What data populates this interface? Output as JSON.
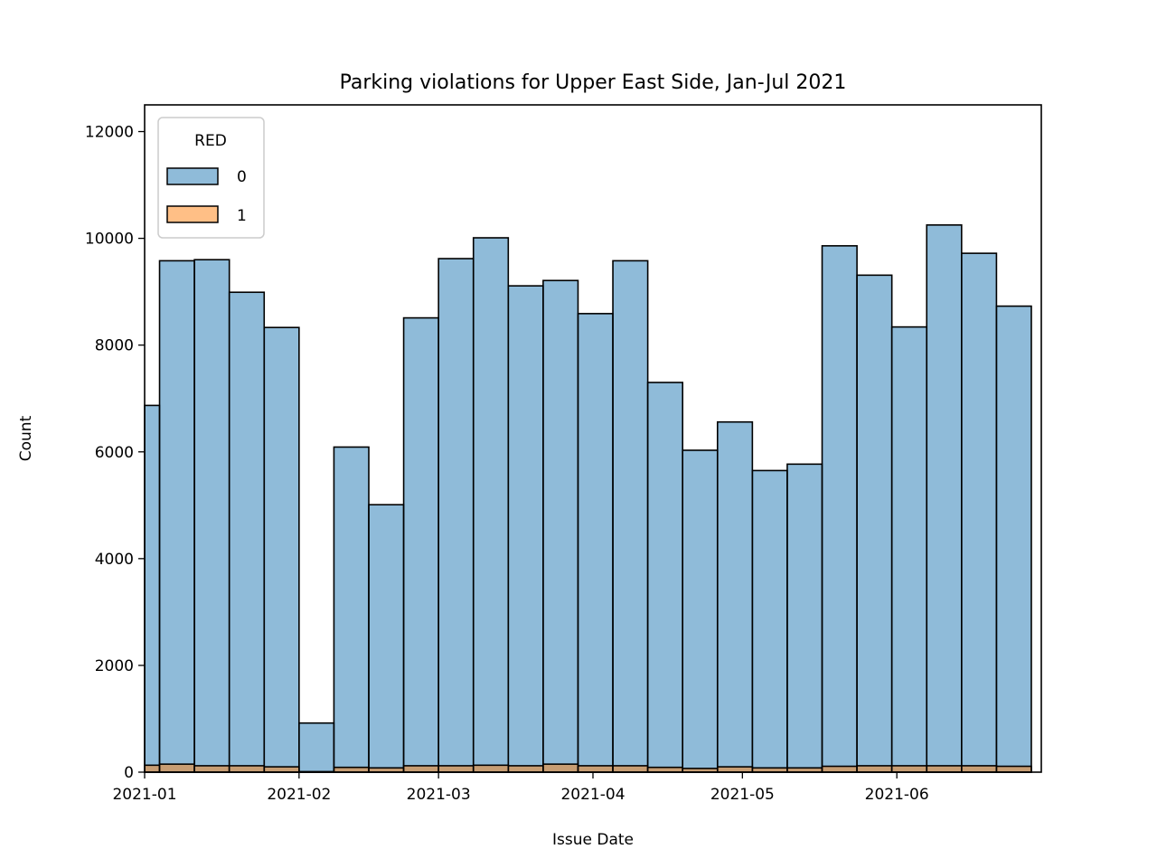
{
  "chart_data": {
    "type": "bar",
    "title": "Parking violations for Upper East Side, Jan-Jul 2021",
    "xlabel": "Issue Date",
    "ylabel": "Count",
    "x_axis": {
      "type": "date",
      "range": [
        "2021-01-01",
        "2021-06-30"
      ],
      "ticks": [
        "2021-01",
        "2021-02",
        "2021-03",
        "2021-04",
        "2021-05",
        "2021-06"
      ]
    },
    "ylim": [
      0,
      12500
    ],
    "y_ticks": [
      0,
      2000,
      4000,
      6000,
      8000,
      10000,
      12000
    ],
    "bins_start": [
      "2021-01-01",
      "2021-01-04",
      "2021-01-11",
      "2021-01-18",
      "2021-01-25",
      "2021-02-01",
      "2021-02-08",
      "2021-02-15",
      "2021-02-22",
      "2021-03-01",
      "2021-03-08",
      "2021-03-15",
      "2021-03-22",
      "2021-03-29",
      "2021-04-05",
      "2021-04-12",
      "2021-04-19",
      "2021-04-26",
      "2021-05-03",
      "2021-05-10",
      "2021-05-17",
      "2021-05-24",
      "2021-05-31",
      "2021-06-07",
      "2021-06-14",
      "2021-06-21"
    ],
    "bins_end": [
      "2021-01-04",
      "2021-01-11",
      "2021-01-18",
      "2021-01-25",
      "2021-02-01",
      "2021-02-08",
      "2021-02-15",
      "2021-02-22",
      "2021-03-01",
      "2021-03-08",
      "2021-03-15",
      "2021-03-22",
      "2021-03-29",
      "2021-04-05",
      "2021-04-12",
      "2021-04-19",
      "2021-04-26",
      "2021-05-03",
      "2021-05-10",
      "2021-05-17",
      "2021-05-24",
      "2021-05-31",
      "2021-06-07",
      "2021-06-14",
      "2021-06-21",
      "2021-06-28"
    ],
    "series": [
      {
        "name": "0",
        "color": "#1f77b4",
        "values": [
          6870,
          9580,
          9600,
          8990,
          8330,
          920,
          6090,
          5010,
          8510,
          9620,
          10010,
          9110,
          9210,
          8590,
          9580,
          7300,
          6030,
          6560,
          5650,
          5770,
          9860,
          9310,
          8340,
          10250,
          9720,
          8730
        ]
      },
      {
        "name": "1",
        "color": "#ff7f0e",
        "values": [
          130,
          150,
          120,
          120,
          100,
          10,
          90,
          80,
          120,
          120,
          130,
          120,
          150,
          120,
          120,
          90,
          70,
          100,
          80,
          80,
          110,
          120,
          120,
          120,
          120,
          110
        ]
      }
    ],
    "legend": {
      "title": "RED",
      "placement": "upper-left",
      "entries": [
        "0",
        "1"
      ]
    },
    "grid": false
  }
}
